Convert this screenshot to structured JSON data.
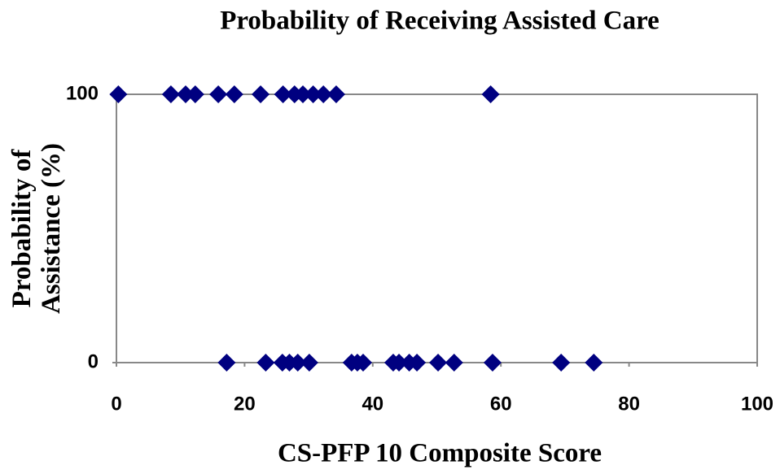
{
  "chart_data": {
    "type": "scatter",
    "title": "Probability of Receiving Assisted Care",
    "xlabel": "CS-PFP 10 Composite Score",
    "ylabel": "Probability of Assistance (%)",
    "color": "#000080",
    "x": [
      0.3,
      8.5,
      10.8,
      12.3,
      15.9,
      18.4,
      22.5,
      26.0,
      27.8,
      29.1,
      30.7,
      32.3,
      34.3,
      58.4,
      17.2,
      23.3,
      25.9,
      27.0,
      28.3,
      30.1,
      36.7,
      37.6,
      38.5,
      43.2,
      44.1,
      45.7,
      46.9,
      50.2,
      52.7,
      58.7,
      69.4,
      74.5
    ],
    "y": [
      100,
      100,
      100,
      100,
      100,
      100,
      100,
      100,
      100,
      100,
      100,
      100,
      100,
      100,
      0,
      0,
      0,
      0,
      0,
      0,
      0,
      0,
      0,
      0,
      0,
      0,
      0,
      0,
      0,
      0,
      0,
      0
    ],
    "xlim": [
      0,
      100
    ],
    "xticks": [
      0,
      20,
      40,
      60,
      80,
      100
    ],
    "ylim": [
      0,
      100
    ],
    "yticks": [
      0,
      100
    ]
  }
}
